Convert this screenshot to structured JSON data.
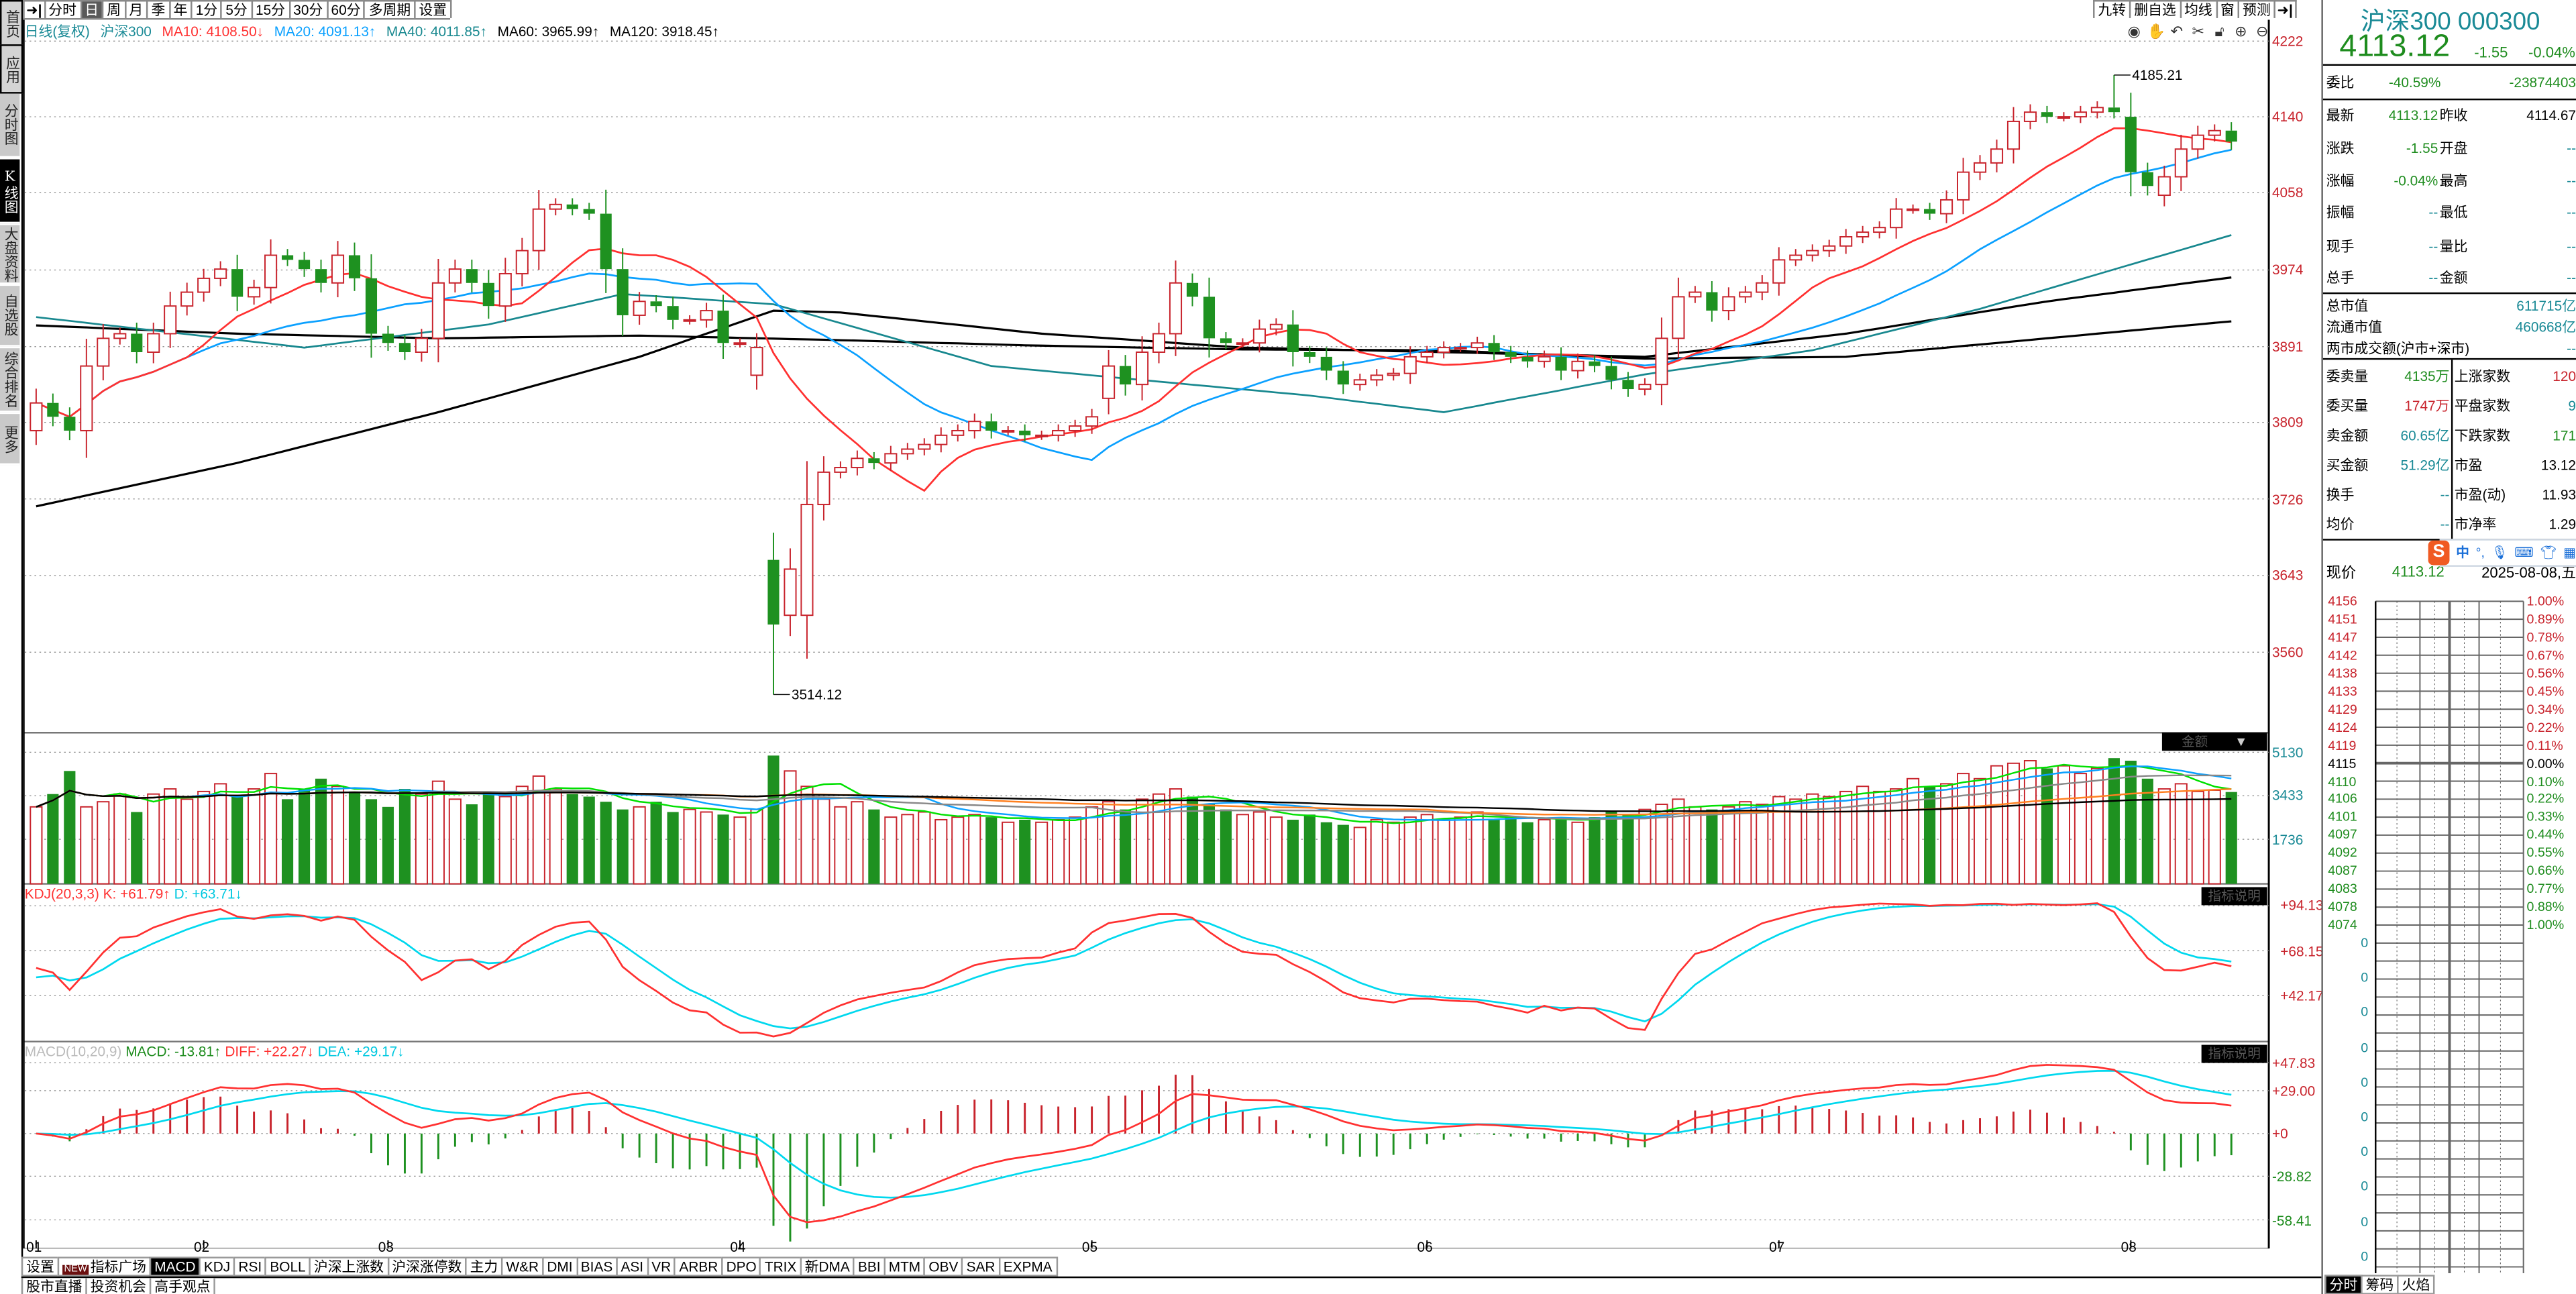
{
  "sidebar": {
    "items": [
      {
        "label": "首页"
      },
      {
        "label": "应用"
      },
      {
        "label": "分时图"
      },
      {
        "label": "K线图"
      },
      {
        "label": "大盘资料"
      },
      {
        "label": "自选股"
      },
      {
        "label": "综合排名"
      },
      {
        "label": "更多"
      }
    ]
  },
  "toolbar": {
    "periods": [
      "分时",
      "日",
      "周",
      "月",
      "季",
      "年",
      "1分",
      "5分",
      "15分",
      "30分",
      "60分",
      "多周期",
      "设置"
    ],
    "selected": "日",
    "right": [
      "九转",
      "删自选",
      "均线",
      "窗",
      "预测"
    ]
  },
  "legend": {
    "mode": "日线(复权)",
    "name": "沪深300",
    "ma10": "MA10: 4108.50↓",
    "ma20": "MA20: 4091.13↑",
    "ma40": "MA40: 4011.85↑",
    "ma60": "MA60: 3965.99↑",
    "ma120": "MA120: 3918.45↑"
  },
  "chart_tools": [
    "eye-icon",
    "hand-icon",
    "undo-icon",
    "scissors-icon",
    "lock-icon",
    "zoom-in-icon",
    "zoom-out-icon"
  ],
  "colors": {
    "up": "#c8232c",
    "down": "#1e9120",
    "ma10": "#ff3030",
    "ma20": "#0aa0ff",
    "ma40": "#18888f",
    "ma60": "#000000",
    "ma120": "#000000",
    "kdj_k": "#ff3030",
    "kdj_d": "#00d8ee",
    "vol_ma": [
      "#00e000",
      "#0aa0ff",
      "#888888",
      "#ff8020",
      "#000000"
    ]
  },
  "chart_data": {
    "type": "candlestick",
    "title": "沪深300 日线(复权)",
    "price_ticks": [
      "4222",
      "4140",
      "4058",
      "3974",
      "3891",
      "3809",
      "3726",
      "3643",
      "3560"
    ],
    "price_range": [
      3560,
      4222
    ],
    "close": [
      3830,
      3815,
      3800,
      3870,
      3900,
      3905,
      3885,
      3905,
      3935,
      3950,
      3965,
      3975,
      3945,
      3955,
      3990,
      3985,
      3975,
      3960,
      3990,
      3965,
      3905,
      3895,
      3885,
      3900,
      3960,
      3975,
      3960,
      3935,
      3970,
      3995,
      4040,
      4045,
      4040,
      4035,
      3975,
      3925,
      3940,
      3935,
      3920,
      3920,
      3930,
      3895,
      3895,
      3890,
      3590,
      3650,
      3720,
      3755,
      3760,
      3770,
      3765,
      3775,
      3780,
      3785,
      3795,
      3800,
      3810,
      3800,
      3800,
      3795,
      3795,
      3800,
      3805,
      3815,
      3870,
      3850,
      3885,
      3905,
      3960,
      3945,
      3900,
      3895,
      3895,
      3910,
      3915,
      3885,
      3880,
      3865,
      3850,
      3855,
      3860,
      3862,
      3880,
      3885,
      3890,
      3890,
      3895,
      3885,
      3880,
      3875,
      3880,
      3865,
      3875,
      3870,
      3855,
      3845,
      3850,
      3900,
      3945,
      3950,
      3930,
      3945,
      3950,
      3960,
      3985,
      3990,
      3995,
      4000,
      4010,
      4015,
      4020,
      4040,
      4040,
      4035,
      4050,
      4080,
      4090,
      4105,
      4135,
      4145,
      4140,
      4140,
      4145,
      4150,
      4145,
      4080,
      4065,
      4075,
      4105,
      4120,
      4125,
      4113.12
    ],
    "open_overrides": {
      "0": 3800,
      "43": 3860,
      "44": 3660,
      "45": 3600,
      "46": 3600,
      "64": 3835,
      "125": 4140,
      "127": 4055
    },
    "high_overrides": {
      "124": 4185.21
    },
    "low_overrides": {
      "44": 3514.12
    },
    "annotations": {
      "high": "4185.21",
      "low": "3514.12",
      "high_index": 124,
      "low_index": 44
    },
    "ma40": [
      [
        0,
        3923
      ],
      [
        16,
        3890
      ],
      [
        27,
        3915
      ],
      [
        35,
        3948
      ],
      [
        44,
        3937
      ],
      [
        57,
        3870
      ],
      [
        76,
        3838
      ],
      [
        84,
        3820
      ],
      [
        96,
        3861
      ],
      [
        106,
        3887
      ],
      [
        116,
        3932
      ],
      [
        131,
        4011.85
      ]
    ],
    "ma60": [
      [
        0,
        3718
      ],
      [
        12,
        3765
      ],
      [
        24,
        3820
      ],
      [
        36,
        3880
      ],
      [
        44,
        3930
      ],
      [
        48,
        3928
      ],
      [
        60,
        3905
      ],
      [
        72,
        3890
      ],
      [
        84,
        3885
      ],
      [
        96,
        3880
      ],
      [
        108,
        3905
      ],
      [
        120,
        3940
      ],
      [
        131,
        3965.99
      ]
    ],
    "ma120": [
      [
        0,
        3914
      ],
      [
        12,
        3905
      ],
      [
        24,
        3900
      ],
      [
        36,
        3903
      ],
      [
        48,
        3898
      ],
      [
        60,
        3892
      ],
      [
        72,
        3888
      ],
      [
        84,
        3887
      ],
      [
        96,
        3878
      ],
      [
        108,
        3880
      ],
      [
        120,
        3900
      ],
      [
        131,
        3918.45
      ]
    ],
    "months": [
      {
        "label": "01",
        "index": 0
      },
      {
        "label": "02",
        "index": 10
      },
      {
        "label": "03",
        "index": 21
      },
      {
        "label": "04",
        "index": 42
      },
      {
        "label": "05",
        "index": 63
      },
      {
        "label": "06",
        "index": 83
      },
      {
        "label": "07",
        "index": 104
      },
      {
        "label": "08",
        "index": 125
      }
    ],
    "volume": {
      "label": "金额",
      "ticks": [
        "5130",
        "3433",
        "1736"
      ],
      "values": [
        3000,
        3500,
        4400,
        3000,
        3200,
        3500,
        2800,
        3500,
        3700,
        3300,
        3600,
        3900,
        3400,
        3700,
        4300,
        3300,
        3700,
        4100,
        3800,
        3600,
        3300,
        3000,
        3700,
        3500,
        4000,
        3300,
        3100,
        3600,
        3400,
        3800,
        4200,
        3700,
        3500,
        3400,
        3200,
        2900,
        3000,
        3200,
        2800,
        2900,
        2800,
        2700,
        2600,
        2900,
        5000,
        4400,
        3800,
        3300,
        3000,
        3200,
        2900,
        2600,
        2700,
        2800,
        2500,
        2600,
        2700,
        2600,
        2400,
        2500,
        2400,
        2500,
        2600,
        3000,
        3200,
        2900,
        3300,
        3500,
        3700,
        3400,
        3100,
        2900,
        2700,
        2800,
        2600,
        2500,
        2700,
        2400,
        2300,
        2200,
        2500,
        2400,
        2600,
        2700,
        2500,
        2600,
        2800,
        2500,
        2600,
        2400,
        2500,
        2600,
        2400,
        2600,
        2800,
        2700,
        2900,
        3100,
        3300,
        3000,
        2900,
        3000,
        3200,
        3100,
        3400,
        3300,
        3500,
        3400,
        3600,
        3800,
        3600,
        3700,
        4100,
        3800,
        3900,
        4300,
        4100,
        4600,
        4700,
        4800,
        4500,
        4600,
        4300,
        4500,
        4900,
        4800,
        4100,
        3700,
        3900,
        3600,
        3650,
        3580
      ],
      "ma_periods": [
        5,
        10,
        20,
        40,
        60
      ]
    },
    "kdj": {
      "params": "KDJ(20,3,3)",
      "k_label": "K: +61.79↑",
      "d_label": "D: +63.71↓",
      "ticks": [
        "+94.13",
        "+68.15",
        "+42.17"
      ],
      "explain": "指标说明"
    },
    "macd": {
      "params": "MACD(10,20,9)",
      "macd_label": "MACD: -13.81↑",
      "diff_label": "DIFF: +22.27↓",
      "dea_label": "DEA: +29.17↓",
      "ticks_pos": [
        "+47.83",
        "+29.00",
        "+0"
      ],
      "ticks_neg": [
        "-28.82",
        "-58.41"
      ],
      "explain": "指标说明"
    }
  },
  "bottom_tabs": {
    "settings": "设置",
    "new_badge": "NEW",
    "indicator_square": "指标广场",
    "indicators": [
      "MACD",
      "KDJ",
      "RSI",
      "BOLL",
      "沪深上涨数",
      "沪深涨停数",
      "主力",
      "W&R",
      "DMI",
      "BIAS",
      "ASI",
      "VR",
      "ARBR",
      "DPO",
      "TRIX",
      "新DMA",
      "BBI",
      "MTM",
      "OBV",
      "SAR",
      "EXPMA"
    ],
    "selected": "MACD",
    "row2": [
      "股市直播",
      "投资机会",
      "高手观点"
    ]
  },
  "quote": {
    "title": "沪深300 000300",
    "price": "4113.12",
    "change": "-1.55",
    "change_pct": "-0.04%",
    "weibi": {
      "label": "委比",
      "pct": "-40.59%",
      "diff": "-23874403"
    },
    "rows": [
      {
        "l1": "最新",
        "v1": "4113.12",
        "l2": "昨收",
        "v2": "4114.67"
      },
      {
        "l1": "涨跌",
        "v1": "-1.55",
        "l2": "开盘",
        "v2": "--"
      },
      {
        "l1": "涨幅",
        "v1": "-0.04%",
        "l2": "最高",
        "v2": "--"
      },
      {
        "l1": "振幅",
        "v1": "--",
        "l2": "最低",
        "v2": "--"
      },
      {
        "l1": "现手",
        "v1": "--",
        "l2": "量比",
        "v2": "--"
      },
      {
        "l1": "总手",
        "v1": "--",
        "l2": "金额",
        "v2": "--"
      }
    ],
    "market_cap": {
      "label": "总市值",
      "value": "611715亿"
    },
    "float_cap": {
      "label": "流通市值",
      "value": "460668亿"
    },
    "turnover_both": {
      "label": "两市成交额(沪市+深市)",
      "value": "--"
    },
    "stats": [
      {
        "l1": "委卖量",
        "v1": "4135万",
        "l2": "上涨家数",
        "v2": "120"
      },
      {
        "l1": "委买量",
        "v1": "1747万",
        "l2": "平盘家数",
        "v2": "9"
      },
      {
        "l1": "卖金额",
        "v1": "60.65亿",
        "l2": "下跌家数",
        "v2": "171"
      },
      {
        "l1": "买金额",
        "v1": "51.29亿",
        "l2": "市盈",
        "v2": "13.12"
      },
      {
        "l1": "换手",
        "v1": "--",
        "l2": "市盈(动)",
        "v2": "11.93"
      },
      {
        "l1": "均价",
        "v1": "--",
        "l2": "市净率",
        "v2": "1.29"
      }
    ],
    "current": {
      "label": "现价",
      "value": "4113.12",
      "date": "2025-08-08,五"
    }
  },
  "ime": {
    "logo": "S",
    "mode": "中",
    "punct": "°,"
  },
  "intraday": {
    "price_labels": [
      "4156",
      "4151",
      "4147",
      "4142",
      "4138",
      "4133",
      "4129",
      "4124",
      "4119",
      "4115",
      "4110",
      "4106",
      "4101",
      "4097",
      "4092",
      "4087",
      "4083",
      "4078",
      "4074"
    ],
    "pct_labels": [
      "1.00%",
      "0.89%",
      "0.78%",
      "0.67%",
      "0.56%",
      "0.45%",
      "0.34%",
      "0.22%",
      "0.11%",
      "0.00%",
      "0.10%",
      "0.22%",
      "0.33%",
      "0.44%",
      "0.55%",
      "0.66%",
      "0.77%",
      "0.88%",
      "1.00%"
    ],
    "volume_labels": [
      "0",
      "0",
      "0",
      "0",
      "0",
      "0",
      "0",
      "0",
      "0",
      "0"
    ],
    "tabs": [
      "分时",
      "筹码",
      "火焰"
    ]
  }
}
